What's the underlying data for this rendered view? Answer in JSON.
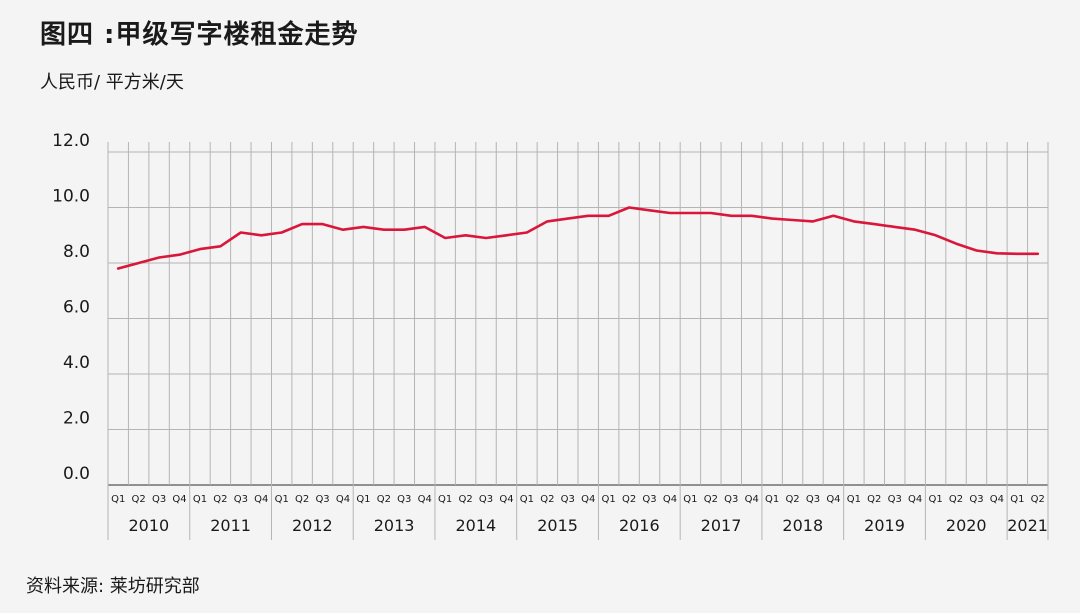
{
  "header": {
    "title": "图四 :甲级写字楼租金走势",
    "unit": "人民币/ 平方米/天"
  },
  "footer": {
    "source": "资料来源: 莱坊研究部"
  },
  "colors": {
    "line": "#d8173b",
    "grid": "#b5b5b5",
    "background": "#f4f4f4"
  },
  "chart_data": {
    "type": "line",
    "title": "图四 :甲级写字楼租金走势",
    "ylabel": "人民币/ 平方米/天",
    "xlabel": "",
    "ylim": [
      0,
      12
    ],
    "yticks": [
      "0.0",
      "2.0",
      "4.0",
      "6.0",
      "8.0",
      "10.0",
      "12.0"
    ],
    "grid": true,
    "years": [
      "2010",
      "2011",
      "2012",
      "2013",
      "2014",
      "2015",
      "2016",
      "2017",
      "2018",
      "2019",
      "2020",
      "2021"
    ],
    "categories": [
      "Q1",
      "Q2",
      "Q3",
      "Q4",
      "Q1",
      "Q2",
      "Q3",
      "Q4",
      "Q1",
      "Q2",
      "Q3",
      "Q4",
      "Q1",
      "Q2",
      "Q3",
      "Q4",
      "Q1",
      "Q2",
      "Q3",
      "Q4",
      "Q1",
      "Q2",
      "Q3",
      "Q4",
      "Q1",
      "Q2",
      "Q3",
      "Q4",
      "Q1",
      "Q2",
      "Q3",
      "Q4",
      "Q1",
      "Q2",
      "Q3",
      "Q4",
      "Q1",
      "Q2",
      "Q3",
      "Q4",
      "Q1",
      "Q2",
      "Q3",
      "Q4",
      "Q1",
      "Q2"
    ],
    "values": [
      7.8,
      8.0,
      8.2,
      8.3,
      8.5,
      8.6,
      9.1,
      9.0,
      9.1,
      9.4,
      9.4,
      9.2,
      9.3,
      9.2,
      9.2,
      9.3,
      8.9,
      9.0,
      8.9,
      9.0,
      9.1,
      9.5,
      9.6,
      9.7,
      9.7,
      10.0,
      9.9,
      9.8,
      9.8,
      9.8,
      9.7,
      9.7,
      9.6,
      9.55,
      9.5,
      9.7,
      9.5,
      9.4,
      9.3,
      9.2,
      9.0,
      8.7,
      8.45,
      8.35,
      8.33,
      8.33
    ]
  }
}
